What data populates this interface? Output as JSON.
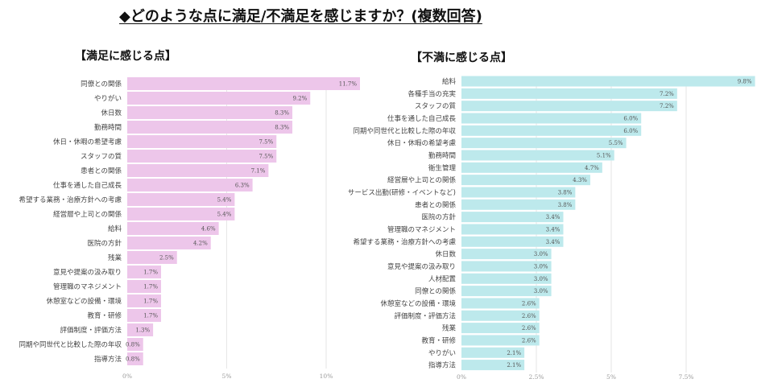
{
  "title": "◆どのような点に満足/不満足を感じますか？(複数回答)",
  "chart_data": [
    {
      "type": "bar",
      "orientation": "horizontal",
      "title": "【満足に感じる点】",
      "color": "#edc6ea",
      "xlim": [
        0,
        12
      ],
      "xticks": [
        "0%",
        "5%",
        "10%"
      ],
      "xtick_values": [
        0,
        5,
        10
      ],
      "grid": true,
      "categories": [
        "同僚との関係",
        "やりがい",
        "休日数",
        "勤務時間",
        "休日・休暇の希望考慮",
        "スタッフの質",
        "患者との関係",
        "仕事を通した自己成長",
        "希望する業務・治療方針への考慮",
        "経営層や上司との関係",
        "給料",
        "医院の方針",
        "残業",
        "意見や提案の汲み取り",
        "管理職のマネジメント",
        "休憩室などの設備・環境",
        "教育・研修",
        "評価制度・評価方法",
        "同期や同世代と比較した際の年収",
        "指導方法"
      ],
      "values": [
        11.7,
        9.2,
        8.3,
        8.3,
        7.5,
        7.5,
        7.1,
        6.3,
        5.4,
        5.4,
        4.6,
        4.2,
        2.5,
        1.7,
        1.7,
        1.7,
        1.7,
        1.3,
        0.8,
        0.8
      ],
      "labels": [
        "11.7%",
        "9.2%",
        "8.3%",
        "8.3%",
        "7.5%",
        "7.5%",
        "7.1%",
        "6.3%",
        "5.4%",
        "5.4%",
        "4.6%",
        "4.2%",
        "2.5%",
        "1.7%",
        "1.7%",
        "1.7%",
        "1.7%",
        "1.3%",
        "0.8%",
        "0.8%"
      ]
    },
    {
      "type": "bar",
      "orientation": "horizontal",
      "title": "【不満に感じる点】",
      "color": "#bde9ec",
      "xlim": [
        0,
        9.8
      ],
      "xticks": [
        "0%",
        "2.5%",
        "5%",
        "7.5%"
      ],
      "xtick_values": [
        0,
        2.5,
        5,
        7.5
      ],
      "grid": true,
      "categories": [
        "給料",
        "各種手当の充実",
        "スタッフの質",
        "仕事を通した自己成長",
        "同期や同世代と比較した際の年収",
        "休日・休暇の希望考慮",
        "勤務時間",
        "衛生管理",
        "経営層や上司との関係",
        "サービス出勤(研修・イベントなど)",
        "患者との関係",
        "医院の方針",
        "管理職のマネジメント",
        "希望する業務・治療方針への考慮",
        "休日数",
        "意見や提案の汲み取り",
        "人材配置",
        "同僚との関係",
        "休憩室などの設備・環境",
        "評価制度・評価方法",
        "残業",
        "教育・研修",
        "やりがい",
        "指導方法"
      ],
      "values": [
        9.8,
        7.2,
        7.2,
        6.0,
        6.0,
        5.5,
        5.1,
        4.7,
        4.3,
        3.8,
        3.8,
        3.4,
        3.4,
        3.4,
        3.0,
        3.0,
        3.0,
        3.0,
        2.6,
        2.6,
        2.6,
        2.6,
        2.1,
        2.1
      ],
      "labels": [
        "9.8%",
        "7.2%",
        "7.2%",
        "6.0%",
        "6.0%",
        "5.5%",
        "5.1%",
        "4.7%",
        "4.3%",
        "3.8%",
        "3.8%",
        "3.4%",
        "3.4%",
        "3.4%",
        "3.0%",
        "3.0%",
        "3.0%",
        "3.0%",
        "2.6%",
        "2.6%",
        "2.6%",
        "2.6%",
        "2.1%",
        "2.1%"
      ]
    }
  ]
}
